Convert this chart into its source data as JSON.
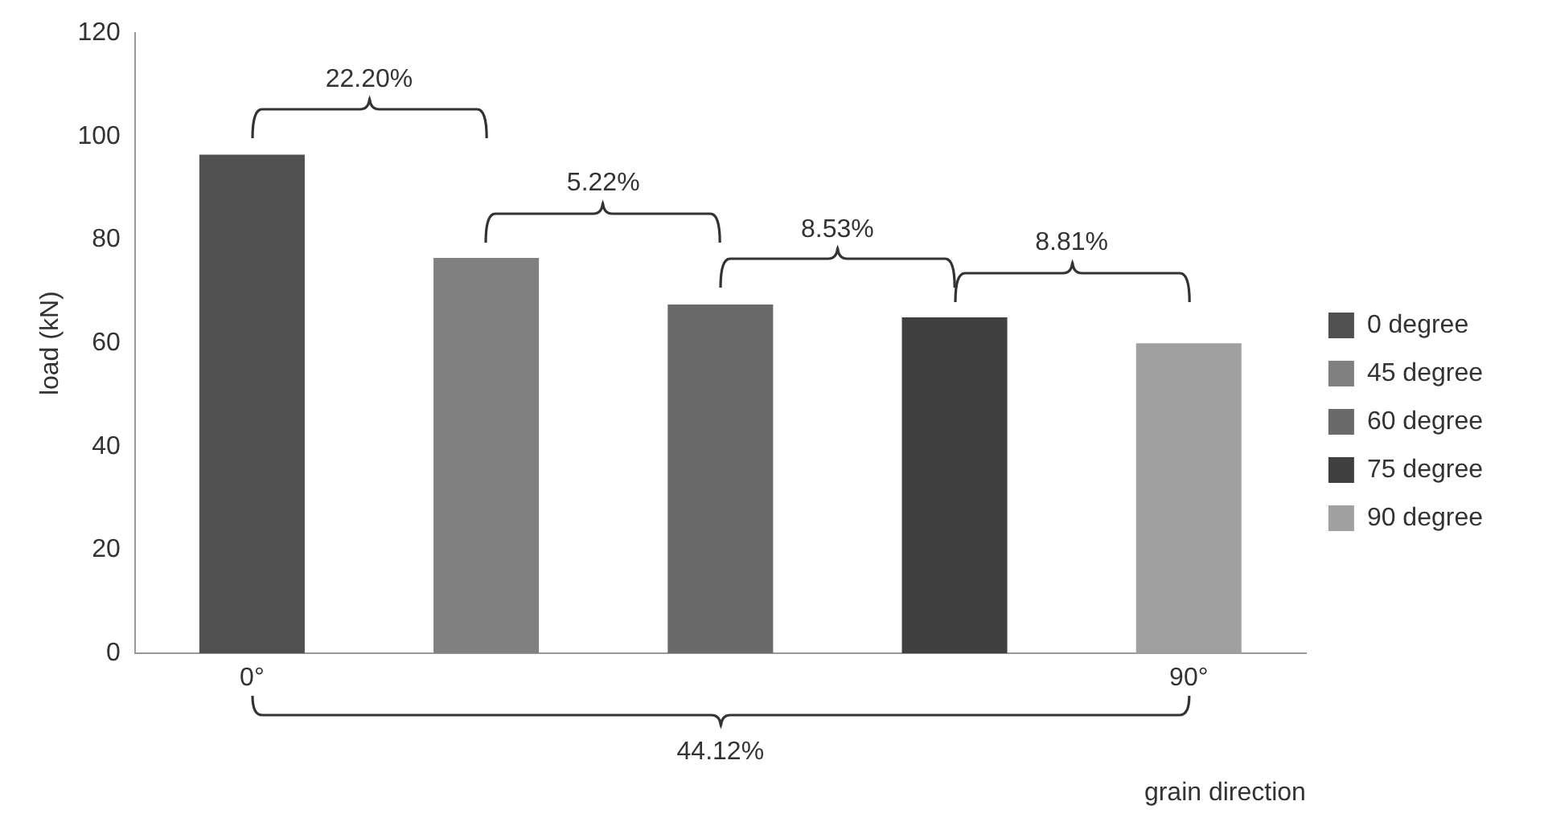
{
  "chart_data": {
    "type": "bar",
    "ylabel": "load (kN)",
    "xlabel": "grain direction",
    "categories": [
      "0°",
      null,
      null,
      null,
      "90°"
    ],
    "series": [
      {
        "name": "0 degree",
        "color": "#505050",
        "values": [
          96.5,
          null,
          null,
          null,
          null
        ]
      },
      {
        "name": "45 degree",
        "color": "#808080",
        "values": [
          null,
          76.5,
          null,
          null,
          null
        ]
      },
      {
        "name": "60 degree",
        "color": "#6a6a6a",
        "values": [
          null,
          null,
          67.5,
          null,
          null
        ]
      },
      {
        "name": "75 degree",
        "color": "#404040",
        "values": [
          null,
          null,
          null,
          65,
          null
        ]
      },
      {
        "name": "90 degree",
        "color": "#a0a0a0",
        "values": [
          null,
          null,
          null,
          null,
          60
        ]
      }
    ],
    "ylim": [
      0,
      120
    ],
    "yticks": [
      0,
      20,
      40,
      60,
      80,
      100,
      120
    ],
    "annotations": [
      "22.20%",
      "5.22%",
      "8.53%",
      "8.81%",
      "44.12%"
    ],
    "grid": false,
    "legend": "right"
  }
}
